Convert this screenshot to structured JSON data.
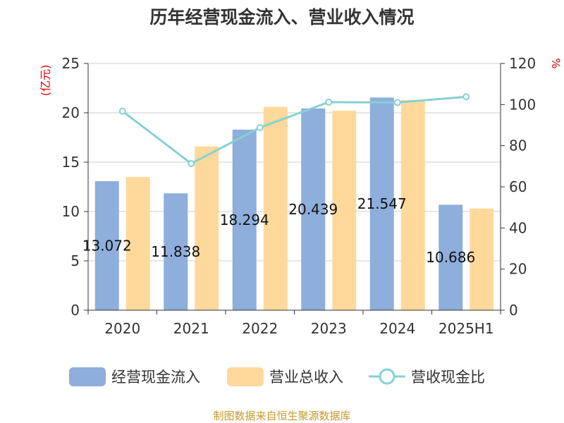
{
  "chart_data": {
    "type": "bar",
    "title": "历年经营现金流入、营业收入情况",
    "categories": [
      "2020",
      "2021",
      "2022",
      "2023",
      "2024",
      "2025H1"
    ],
    "series": [
      {
        "name": "经营现金流入",
        "type": "bar",
        "axis": "left",
        "color": "#8eaedb",
        "values": [
          13.072,
          11.838,
          18.294,
          20.439,
          21.547,
          10.686
        ],
        "labels": [
          "13.072",
          "11.838",
          "18.294",
          "20.439",
          "21.547",
          "10.686"
        ]
      },
      {
        "name": "营业总收入",
        "type": "bar",
        "axis": "left",
        "color": "#ffd99b",
        "values": [
          13.5,
          16.6,
          20.6,
          20.2,
          21.3,
          10.3
        ]
      },
      {
        "name": "营收现金比",
        "type": "line",
        "axis": "right",
        "color": "#86d0d6",
        "values": [
          96.8,
          71.3,
          88.8,
          101.2,
          101.0,
          103.8
        ]
      }
    ],
    "y_left": {
      "label": "(亿元)",
      "min": 0,
      "max": 25,
      "ticks": [
        0,
        5,
        10,
        15,
        20,
        25
      ]
    },
    "y_right": {
      "label": "%",
      "min": 0,
      "max": 120,
      "ticks": [
        0,
        20,
        40,
        60,
        80,
        100,
        120
      ]
    },
    "grid": true,
    "legend": "bottom"
  },
  "footer": "制图数据来自恒生聚源数据库"
}
